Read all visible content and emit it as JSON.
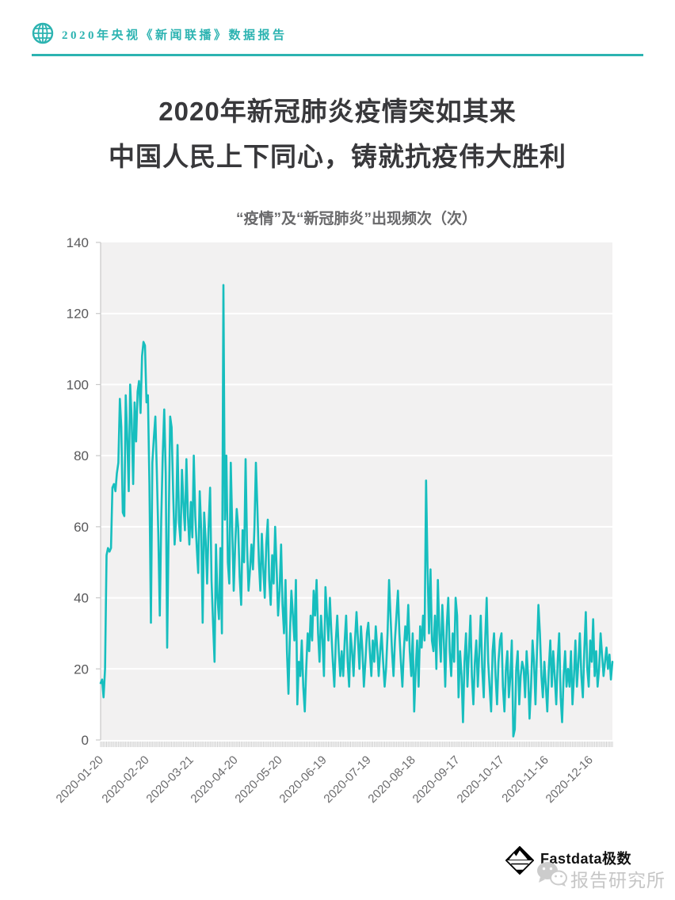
{
  "page": {
    "header": {
      "brand": "2020年央视《新闻联播》数据报告"
    },
    "title": {
      "line1": "2020年新冠肺炎疫情突如其来",
      "line2": "中国人民上下同心，铸就抗疫伟大胜利"
    },
    "footer": {
      "logo_text": "Fastdata极数",
      "watermark_text": "报告研究所"
    }
  },
  "colors": {
    "accent_teal": "#2cb3b1",
    "line_teal": "#17bebe",
    "plot_background": "#f2f1f1",
    "gridline": "#ffffff",
    "axis_line": "#c9c9c9",
    "axis_text": "#58585a",
    "x_label_text": "#6b6b6d",
    "title_text": "#38383b",
    "chart_title_text": "#69696b",
    "watermark_gray": "#c6c6c6"
  },
  "chart_data": {
    "type": "line",
    "title": "“疫情”及“新冠肺炎”出现频次（次）",
    "series_name": "“疫情”及“新冠肺炎”出现频次",
    "unit": "次",
    "x_unit": "day",
    "x_start": "2020-01-20",
    "x_end": "2020-12-31",
    "x_tick_labels": [
      "2020-01-20",
      "2020-02-20",
      "2020-03-21",
      "2020-04-20",
      "2020-05-20",
      "2020-06-19",
      "2020-07-19",
      "2020-08-18",
      "2020-09-17",
      "2020-10-17",
      "2020-11-16",
      "2020-12-16"
    ],
    "x_tick_day_index": [
      0,
      31,
      61,
      91,
      121,
      151,
      181,
      211,
      241,
      271,
      301,
      331
    ],
    "yticks": [
      0,
      20,
      40,
      60,
      80,
      100,
      120,
      140
    ],
    "ylim": [
      0,
      140
    ],
    "grid": "horizontal white lines on light gray panel",
    "legend": "none",
    "line_color": "#17bebe",
    "values": [
      16,
      17,
      12,
      20,
      52,
      54,
      53,
      54,
      71,
      72,
      70,
      75,
      78,
      96,
      88,
      64,
      63,
      97,
      85,
      70,
      100,
      90,
      72,
      95,
      84,
      98,
      101,
      92,
      108,
      112,
      111,
      95,
      97,
      72,
      33,
      78,
      85,
      91,
      76,
      58,
      35,
      62,
      80,
      93,
      75,
      26,
      60,
      91,
      88,
      70,
      55,
      62,
      83,
      61,
      56,
      76,
      66,
      59,
      79,
      63,
      55,
      67,
      57,
      80,
      63,
      54,
      47,
      70,
      59,
      33,
      64,
      56,
      44,
      60,
      71,
      45,
      33,
      22,
      55,
      40,
      34,
      54,
      30,
      128,
      62,
      80,
      50,
      44,
      78,
      59,
      42,
      55,
      65,
      60,
      46,
      38,
      59,
      50,
      79,
      55,
      42,
      48,
      55,
      48,
      60,
      78,
      65,
      50,
      42,
      58,
      48,
      40,
      55,
      62,
      45,
      38,
      52,
      44,
      60,
      48,
      35,
      42,
      55,
      38,
      30,
      45,
      25,
      13,
      30,
      42,
      35,
      28,
      45,
      10,
      22,
      18,
      28,
      15,
      8,
      20,
      30,
      25,
      35,
      28,
      42,
      35,
      45,
      30,
      22,
      35,
      28,
      18,
      43,
      35,
      28,
      40,
      30,
      22,
      15,
      28,
      35,
      25,
      18,
      25,
      18,
      28,
      35,
      22,
      15,
      30,
      25,
      18,
      28,
      36,
      28,
      20,
      32,
      25,
      15,
      22,
      30,
      33,
      25,
      18,
      28,
      22,
      32,
      26,
      18,
      25,
      30,
      22,
      15,
      20,
      30,
      45,
      35,
      25,
      18,
      28,
      35,
      42,
      30,
      22,
      15,
      25,
      32,
      28,
      38,
      25,
      18,
      30,
      8,
      20,
      28,
      15,
      32,
      26,
      35,
      28,
      73,
      49,
      30,
      48,
      28,
      25,
      35,
      20,
      45,
      30,
      22,
      38,
      28,
      15,
      32,
      40,
      25,
      18,
      30,
      22,
      40,
      35,
      12,
      25,
      18,
      5,
      22,
      30,
      15,
      25,
      35,
      18,
      10,
      22,
      28,
      15,
      25,
      35,
      20,
      12,
      28,
      40,
      22,
      15,
      8,
      25,
      30,
      18,
      10,
      22,
      28,
      30,
      15,
      8,
      20,
      25,
      12,
      18,
      28,
      1,
      3,
      20,
      25,
      10,
      18,
      22,
      20,
      12,
      25,
      18,
      6,
      15,
      28,
      22,
      10,
      25,
      38,
      30,
      18,
      12,
      22,
      15,
      8,
      20,
      28,
      15,
      25,
      18,
      10,
      22,
      30,
      12,
      5,
      18,
      25,
      15,
      20,
      15,
      25,
      10,
      18,
      28,
      15,
      22,
      30,
      18,
      12,
      25,
      36,
      20,
      15,
      28,
      22,
      34,
      18,
      25,
      15,
      20,
      30,
      24,
      18,
      22,
      26,
      20,
      24,
      17,
      22
    ]
  }
}
